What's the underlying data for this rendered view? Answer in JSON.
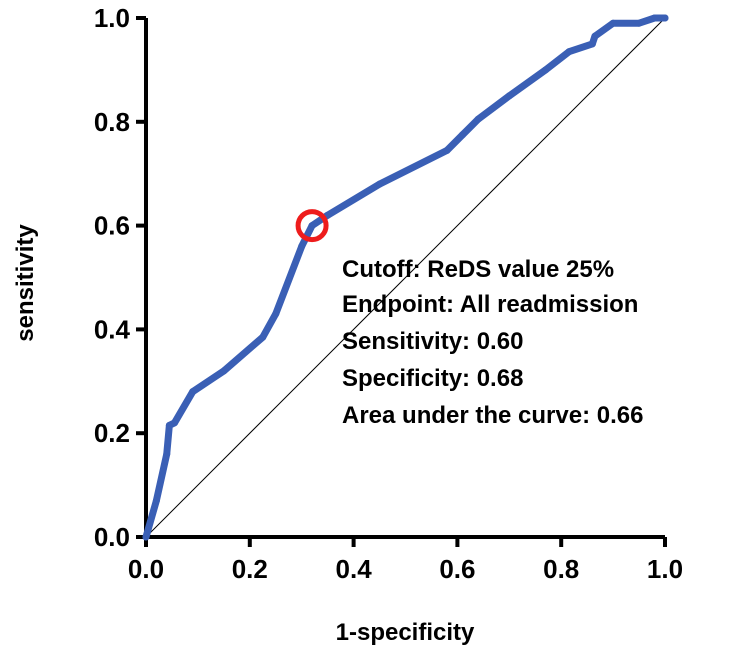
{
  "chart_data": {
    "type": "line",
    "xlabel": "1-specificity",
    "ylabel": "sensitivity",
    "xlim": [
      0,
      1
    ],
    "ylim": [
      0,
      1
    ],
    "x_ticks": [
      "0.0",
      "0.2",
      "0.4",
      "0.6",
      "0.8",
      "1.0"
    ],
    "y_ticks": [
      "0.0",
      "0.2",
      "0.4",
      "0.6",
      "0.8",
      "1.0"
    ],
    "grid": false,
    "legend": "none",
    "series": [
      {
        "color": "#3a5fb5",
        "points": [
          [
            0.0,
            0.0
          ],
          [
            0.02,
            0.07
          ],
          [
            0.04,
            0.16
          ],
          [
            0.045,
            0.215
          ],
          [
            0.055,
            0.22
          ],
          [
            0.09,
            0.28
          ],
          [
            0.15,
            0.32
          ],
          [
            0.225,
            0.385
          ],
          [
            0.25,
            0.43
          ],
          [
            0.3,
            0.56
          ],
          [
            0.32,
            0.6
          ],
          [
            0.35,
            0.62
          ],
          [
            0.45,
            0.68
          ],
          [
            0.58,
            0.745
          ],
          [
            0.61,
            0.775
          ],
          [
            0.64,
            0.805
          ],
          [
            0.7,
            0.85
          ],
          [
            0.77,
            0.9
          ],
          [
            0.815,
            0.935
          ],
          [
            0.86,
            0.95
          ],
          [
            0.865,
            0.965
          ],
          [
            0.9,
            0.99
          ],
          [
            0.95,
            0.99
          ],
          [
            0.98,
            1.0
          ],
          [
            1.0,
            1.0
          ]
        ]
      }
    ],
    "reference_line": {
      "color": "#000000",
      "points": [
        [
          0,
          0
        ],
        [
          1,
          1
        ]
      ]
    },
    "cutoff_marker": {
      "x": 0.32,
      "y": 0.6,
      "color": "#ee1c1c"
    },
    "annotations": [
      "Cutoff: ReDS value 25%",
      "Endpoint: All readmission",
      "Sensitivity: 0.60",
      "Specificity: 0.68",
      "Area under the curve: 0.66"
    ]
  }
}
